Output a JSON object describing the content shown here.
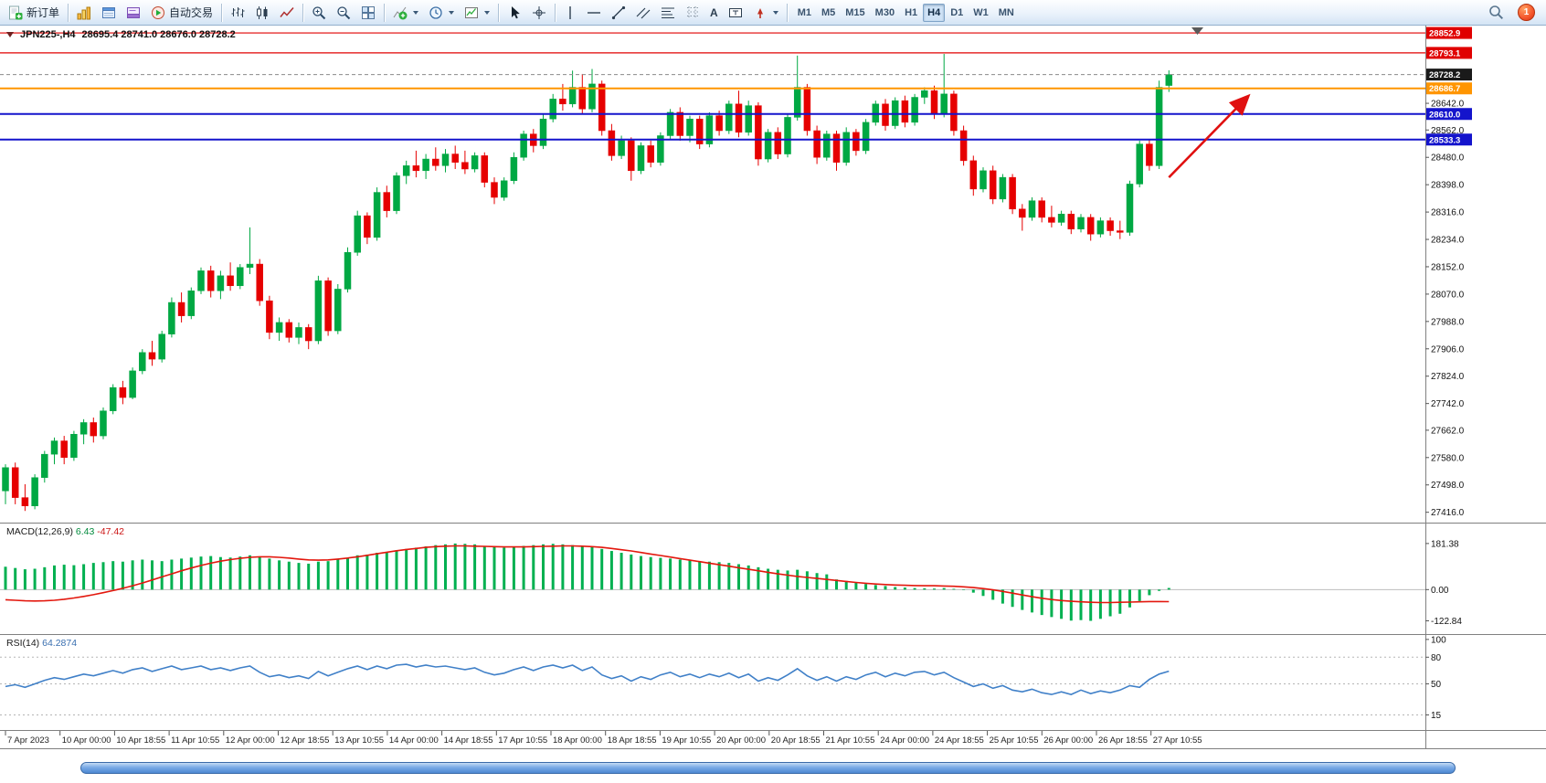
{
  "toolbar": {
    "new_order": "新订单",
    "auto_trading": "自动交易",
    "timeframes": [
      "M1",
      "M5",
      "M15",
      "M30",
      "H1",
      "H4",
      "D1",
      "W1",
      "MN"
    ],
    "active_timeframe": "H4",
    "notification_count": "1"
  },
  "chart": {
    "symbol_period": "JPN225-,H4",
    "ohlc": "28695.4 28741.0 28676.0 28728.2",
    "price_badges": [
      {
        "label": "28852.9",
        "bg": "#e00000"
      },
      {
        "label": "28793.1",
        "bg": "#e00000"
      },
      {
        "label": "28728.2",
        "bg": "#1a1a1a"
      },
      {
        "label": "28686.7",
        "bg": "#ff9500"
      },
      {
        "label": "28610.0",
        "bg": "#1414cc"
      },
      {
        "label": "28533.3",
        "bg": "#1414cc"
      }
    ],
    "hlines": [
      {
        "price": 28852.9,
        "color": "#e00000",
        "w": 1.2
      },
      {
        "price": 28793.1,
        "color": "#e00000",
        "w": 1.2
      },
      {
        "price": 28728.2,
        "color": "#8a8a8a",
        "w": 1,
        "dash": "4 3"
      },
      {
        "price": 28686.7,
        "color": "#ff9500",
        "w": 2
      },
      {
        "price": 28610.0,
        "color": "#1414cc",
        "w": 2
      },
      {
        "price": 28533.3,
        "color": "#1414cc",
        "w": 2
      }
    ],
    "arrow": {
      "color": "#e01010",
      "from": {
        "index": 119,
        "price": 28420
      },
      "to": {
        "index": 127,
        "price": 28660
      }
    }
  },
  "macd": {
    "label": "MACD(12,26,9)",
    "value_main": "6.43",
    "value_signal": "-47.42"
  },
  "rsi": {
    "label": "RSI(14)",
    "value": "64.2874"
  },
  "chart_data": {
    "type": "candlestick",
    "title": "JPN225-,H4",
    "price_ylim": [
      27385,
      28875
    ],
    "price_axis_ticks": [
      "28642.0",
      "28562.0",
      "28480.0",
      "28398.0",
      "28316.0",
      "28234.0",
      "28152.0",
      "28070.0",
      "27988.0",
      "27906.0",
      "27824.0",
      "27742.0",
      "27662.0",
      "27580.0",
      "27498.0",
      "27416.0"
    ],
    "x_axis_labels": [
      "7 Apr 2023",
      "10 Apr 00:00",
      "10 Apr 18:55",
      "11 Apr 10:55",
      "12 Apr 00:00",
      "12 Apr 18:55",
      "13 Apr 10:55",
      "14 Apr 00:00",
      "14 Apr 18:55",
      "17 Apr 10:55",
      "18 Apr 00:00",
      "18 Apr 18:55",
      "19 Apr 10:55",
      "20 Apr 00:00",
      "20 Apr 18:55",
      "21 Apr 10:55",
      "24 Apr 00:00",
      "24 Apr 18:55",
      "25 Apr 10:55",
      "26 Apr 00:00",
      "26 Apr 18:55",
      "27 Apr 10:55"
    ],
    "candles_ohlc": [
      [
        27480,
        27560,
        27440,
        27550
      ],
      [
        27550,
        27565,
        27440,
        27460
      ],
      [
        27460,
        27500,
        27420,
        27435
      ],
      [
        27435,
        27530,
        27425,
        27520
      ],
      [
        27520,
        27600,
        27505,
        27590
      ],
      [
        27590,
        27640,
        27560,
        27630
      ],
      [
        27630,
        27645,
        27560,
        27580
      ],
      [
        27580,
        27660,
        27570,
        27650
      ],
      [
        27650,
        27695,
        27620,
        27685
      ],
      [
        27685,
        27700,
        27625,
        27645
      ],
      [
        27645,
        27730,
        27635,
        27720
      ],
      [
        27720,
        27800,
        27710,
        27790
      ],
      [
        27790,
        27810,
        27740,
        27760
      ],
      [
        27760,
        27850,
        27755,
        27840
      ],
      [
        27840,
        27905,
        27830,
        27895
      ],
      [
        27895,
        27930,
        27855,
        27875
      ],
      [
        27875,
        27960,
        27865,
        27950
      ],
      [
        27950,
        28060,
        27940,
        28045
      ],
      [
        28045,
        28075,
        27985,
        28005
      ],
      [
        28005,
        28090,
        27995,
        28080
      ],
      [
        28080,
        28150,
        28070,
        28140
      ],
      [
        28140,
        28155,
        28060,
        28080
      ],
      [
        28080,
        28140,
        28055,
        28125
      ],
      [
        28125,
        28165,
        28080,
        28095
      ],
      [
        28095,
        28160,
        28085,
        28150
      ],
      [
        28150,
        28270,
        28130,
        28160
      ],
      [
        28160,
        28175,
        28035,
        28050
      ],
      [
        28050,
        28065,
        27935,
        27955
      ],
      [
        27955,
        28000,
        27930,
        27985
      ],
      [
        27985,
        27995,
        27925,
        27940
      ],
      [
        27940,
        27985,
        27920,
        27970
      ],
      [
        27970,
        27980,
        27905,
        27930
      ],
      [
        27930,
        28125,
        27920,
        28110
      ],
      [
        28110,
        28120,
        27945,
        27960
      ],
      [
        27960,
        28100,
        27950,
        28085
      ],
      [
        28085,
        28210,
        28075,
        28195
      ],
      [
        28195,
        28320,
        28185,
        28305
      ],
      [
        28305,
        28315,
        28220,
        28240
      ],
      [
        28240,
        28390,
        28230,
        28375
      ],
      [
        28375,
        28395,
        28300,
        28320
      ],
      [
        28320,
        28435,
        28310,
        28425
      ],
      [
        28425,
        28470,
        28400,
        28455
      ],
      [
        28455,
        28500,
        28420,
        28440
      ],
      [
        28440,
        28490,
        28415,
        28475
      ],
      [
        28475,
        28510,
        28440,
        28455
      ],
      [
        28455,
        28505,
        28435,
        28490
      ],
      [
        28490,
        28515,
        28445,
        28465
      ],
      [
        28465,
        28500,
        28430,
        28445
      ],
      [
        28445,
        28495,
        28435,
        28485
      ],
      [
        28485,
        28495,
        28390,
        28405
      ],
      [
        28405,
        28420,
        28340,
        28360
      ],
      [
        28360,
        28420,
        28350,
        28410
      ],
      [
        28410,
        28495,
        28400,
        28480
      ],
      [
        28480,
        28560,
        28470,
        28550
      ],
      [
        28550,
        28565,
        28495,
        28515
      ],
      [
        28515,
        28610,
        28505,
        28595
      ],
      [
        28595,
        28670,
        28585,
        28655
      ],
      [
        28655,
        28700,
        28620,
        28640
      ],
      [
        28640,
        28740,
        28630,
        28690
      ],
      [
        28690,
        28730,
        28610,
        28625
      ],
      [
        28625,
        28745,
        28615,
        28700
      ],
      [
        28700,
        28710,
        28545,
        28560
      ],
      [
        28560,
        28580,
        28470,
        28485
      ],
      [
        28485,
        28545,
        28475,
        28530
      ],
      [
        28530,
        28540,
        28410,
        28440
      ],
      [
        28440,
        28525,
        28430,
        28515
      ],
      [
        28515,
        28530,
        28450,
        28465
      ],
      [
        28465,
        28555,
        28455,
        28545
      ],
      [
        28545,
        28625,
        28535,
        28615
      ],
      [
        28615,
        28630,
        28530,
        28545
      ],
      [
        28545,
        28605,
        28525,
        28595
      ],
      [
        28595,
        28605,
        28505,
        28520
      ],
      [
        28520,
        28615,
        28510,
        28605
      ],
      [
        28605,
        28620,
        28545,
        28560
      ],
      [
        28560,
        28650,
        28550,
        28640
      ],
      [
        28640,
        28680,
        28540,
        28555
      ],
      [
        28555,
        28650,
        28545,
        28635
      ],
      [
        28635,
        28645,
        28455,
        28475
      ],
      [
        28475,
        28565,
        28465,
        28555
      ],
      [
        28555,
        28570,
        28475,
        28490
      ],
      [
        28490,
        28610,
        28480,
        28600
      ],
      [
        28600,
        28785,
        28590,
        28690
      ],
      [
        28690,
        28700,
        28545,
        28560
      ],
      [
        28560,
        28575,
        28460,
        28480
      ],
      [
        28480,
        28560,
        28470,
        28550
      ],
      [
        28550,
        28560,
        28440,
        28465
      ],
      [
        28465,
        28570,
        28455,
        28555
      ],
      [
        28555,
        28565,
        28485,
        28500
      ],
      [
        28500,
        28595,
        28490,
        28585
      ],
      [
        28585,
        28650,
        28575,
        28640
      ],
      [
        28640,
        28655,
        28560,
        28575
      ],
      [
        28575,
        28660,
        28565,
        28650
      ],
      [
        28650,
        28665,
        28570,
        28585
      ],
      [
        28585,
        28670,
        28575,
        28660
      ],
      [
        28660,
        28690,
        28640,
        28680
      ],
      [
        28680,
        28695,
        28595,
        28610
      ],
      [
        28610,
        28790,
        28600,
        28670
      ],
      [
        28670,
        28680,
        28545,
        28560
      ],
      [
        28560,
        28575,
        28455,
        28470
      ],
      [
        28470,
        28485,
        28365,
        28385
      ],
      [
        28385,
        28450,
        28375,
        28440
      ],
      [
        28440,
        28455,
        28340,
        28355
      ],
      [
        28355,
        28430,
        28345,
        28420
      ],
      [
        28420,
        28430,
        28310,
        28325
      ],
      [
        28325,
        28340,
        28260,
        28300
      ],
      [
        28300,
        28360,
        28290,
        28350
      ],
      [
        28350,
        28360,
        28285,
        28300
      ],
      [
        28300,
        28335,
        28270,
        28285
      ],
      [
        28285,
        28320,
        28275,
        28310
      ],
      [
        28310,
        28320,
        28250,
        28265
      ],
      [
        28265,
        28310,
        28255,
        28300
      ],
      [
        28300,
        28310,
        28230,
        28250
      ],
      [
        28250,
        28300,
        28240,
        28290
      ],
      [
        28290,
        28300,
        28245,
        28260
      ],
      [
        28260,
        28290,
        28235,
        28255
      ],
      [
        28255,
        28410,
        28245,
        28400
      ],
      [
        28400,
        28530,
        28390,
        28520
      ],
      [
        28520,
        28535,
        28440,
        28455
      ],
      [
        28455,
        28710,
        28445,
        28690
      ],
      [
        28695.4,
        28741.0,
        28676.0,
        28728.2
      ]
    ],
    "indicators": {
      "macd": {
        "name": "MACD(12,26,9)",
        "axis_ticks": [
          "181.38",
          "0.00",
          "-122.84"
        ],
        "ylim": [
          -175,
          260
        ],
        "values": [
          90,
          85,
          80,
          82,
          88,
          95,
          98,
          96,
          100,
          105,
          108,
          112,
          110,
          115,
          118,
          115,
          112,
          118,
          122,
          126,
          130,
          132,
          128,
          126,
          130,
          135,
          130,
          122,
          115,
          110,
          105,
          102,
          110,
          112,
          118,
          125,
          135,
          138,
          145,
          148,
          155,
          160,
          165,
          170,
          175,
          178,
          181.38,
          180,
          178,
          172,
          168,
          165,
          168,
          172,
          175,
          178,
          180,
          178,
          175,
          172,
          168,
          160,
          152,
          145,
          138,
          132,
          128,
          125,
          122,
          118,
          115,
          112,
          110,
          108,
          105,
          100,
          95,
          88,
          82,
          78,
          75,
          78,
          72,
          65,
          60,
          40,
          34,
          28,
          22,
          18,
          14,
          10,
          8,
          6,
          5,
          4,
          6,
          3,
          -2,
          -12,
          -25,
          -40,
          -55,
          -68,
          -80,
          -90,
          -100,
          -108,
          -115,
          -122,
          -120,
          -122.84,
          -115,
          -105,
          -95,
          -70,
          -45,
          -22,
          -5,
          6.43
        ],
        "signal": [
          -40,
          -42,
          -44,
          -45,
          -44,
          -42,
          -38,
          -33,
          -27,
          -20,
          -12,
          -4,
          5,
          15,
          26,
          38,
          50,
          62,
          74,
          85,
          95,
          104,
          112,
          118,
          123,
          127,
          129,
          129,
          127,
          124,
          120,
          117,
          116,
          117,
          120,
          124,
          129,
          135,
          141,
          147,
          153,
          158,
          162,
          166,
          169,
          171,
          172,
          172,
          171,
          170,
          169,
          168,
          168,
          168,
          169,
          170,
          171,
          172,
          172,
          171,
          169,
          166,
          162,
          157,
          152,
          146,
          140,
          134,
          128,
          122,
          116,
          110,
          104,
          98,
          92,
          86,
          80,
          74,
          68,
          62,
          57,
          52,
          48,
          44,
          40,
          36,
          32,
          28,
          25,
          22,
          20,
          18,
          17,
          16,
          15,
          15,
          14,
          13,
          11,
          8,
          4,
          -1,
          -7,
          -14,
          -21,
          -28,
          -34,
          -39,
          -43,
          -46,
          -48,
          -50,
          -51,
          -51,
          -50,
          -49,
          -48,
          -47,
          -47,
          -47.42
        ]
      },
      "rsi": {
        "name": "RSI(14)",
        "axis_ticks": [
          "100",
          "80",
          "50",
          "15"
        ],
        "levels": [
          80,
          50,
          15
        ],
        "ylim": [
          -2,
          105
        ],
        "values": [
          47,
          49,
          46,
          50,
          54,
          57,
          55,
          58,
          61,
          59,
          62,
          65,
          62,
          66,
          68,
          64,
          67,
          70,
          66,
          68,
          70,
          66,
          68,
          65,
          68,
          70,
          63,
          58,
          60,
          57,
          59,
          56,
          64,
          59,
          63,
          67,
          70,
          66,
          70,
          67,
          71,
          72,
          69,
          71,
          69,
          70,
          68,
          66,
          68,
          63,
          60,
          62,
          66,
          69,
          65,
          69,
          71,
          68,
          71,
          65,
          69,
          60,
          56,
          59,
          53,
          58,
          55,
          60,
          63,
          58,
          61,
          57,
          61,
          58,
          62,
          57,
          61,
          53,
          57,
          54,
          60,
          67,
          59,
          54,
          58,
          53,
          58,
          55,
          60,
          63,
          58,
          62,
          59,
          63,
          64,
          60,
          63,
          57,
          52,
          47,
          50,
          45,
          48,
          43,
          41,
          44,
          40,
          38,
          41,
          38,
          43,
          39,
          42,
          40,
          43,
          48,
          46,
          55,
          61,
          64.2874
        ]
      }
    },
    "colors": {
      "up": "#00a843",
      "down": "#e60000",
      "macd_hist": "#00b050",
      "macd_signal": "#e3170d",
      "rsi_line": "#4080c8"
    }
  }
}
